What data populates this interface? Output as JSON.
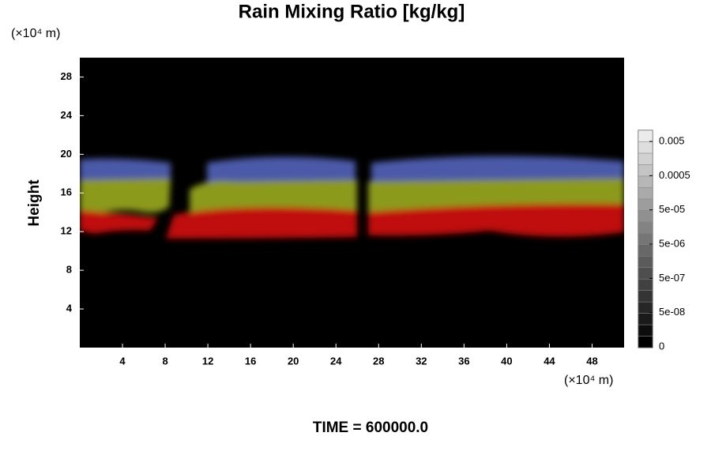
{
  "chart_data": {
    "type": "contour",
    "title": "Rain Mixing Ratio [kg/kg]",
    "y_unit": "(×10⁴ m)",
    "x_unit": "(×10⁴ m)",
    "ylabel": "Height",
    "footer": "TIME = 600000.0",
    "xlim": [
      0,
      51
    ],
    "xticks": [
      4,
      8,
      12,
      16,
      20,
      24,
      28,
      32,
      36,
      40,
      44,
      48
    ],
    "ylim": [
      0,
      30
    ],
    "yticks": [
      4,
      8,
      12,
      16,
      20,
      24,
      28
    ],
    "colorbar": {
      "ticks": [
        {
          "value": 0,
          "label": "0"
        },
        {
          "value": 5e-08,
          "label": "5e-08"
        },
        {
          "value": 5e-07,
          "label": "5e-07"
        },
        {
          "value": 5e-06,
          "label": "5e-06"
        },
        {
          "value": 5e-05,
          "label": "5e-05"
        },
        {
          "value": 0.0005,
          "label": "0.0005"
        },
        {
          "value": 0.005,
          "label": "0.005"
        }
      ]
    }
  }
}
